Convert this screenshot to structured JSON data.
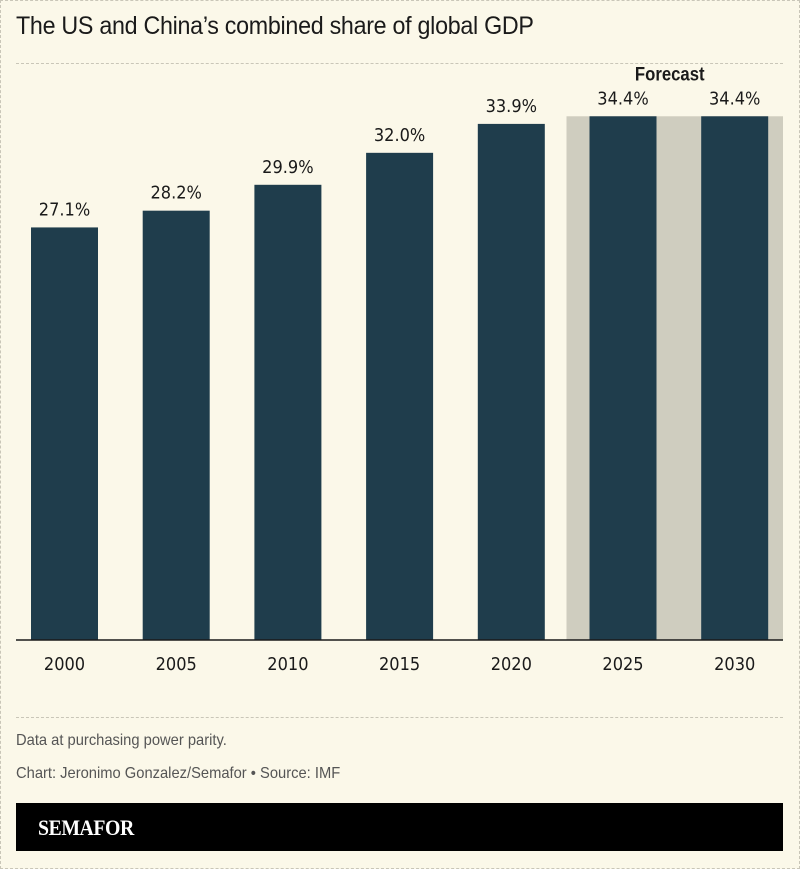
{
  "chart_data": {
    "type": "bar",
    "title": "The US and China’s combined share of global GDP",
    "categories": [
      "2000",
      "2005",
      "2010",
      "2015",
      "2020",
      "2025",
      "2030"
    ],
    "values": [
      27.1,
      28.2,
      29.9,
      32.0,
      33.9,
      34.4,
      34.4
    ],
    "data_labels": [
      "27.1%",
      "28.2%",
      "29.9%",
      "32.0%",
      "33.9%",
      "34.4%",
      "34.4%"
    ],
    "unit": "%",
    "forecast_categories": [
      "2025",
      "2030"
    ],
    "forecast_label": "Forecast",
    "ylim": [
      0,
      37.9
    ],
    "grid": false,
    "colors": {
      "bar": "#1f3d4c",
      "forecast_shade": "#cfcdbf",
      "background": "#fbf8e9"
    }
  },
  "footer": {
    "note": "Data at purchasing power parity.",
    "credit": "Chart: Jeronimo Gonzalez/Semafor • Source: IMF",
    "brand": "SEMAFOR"
  }
}
